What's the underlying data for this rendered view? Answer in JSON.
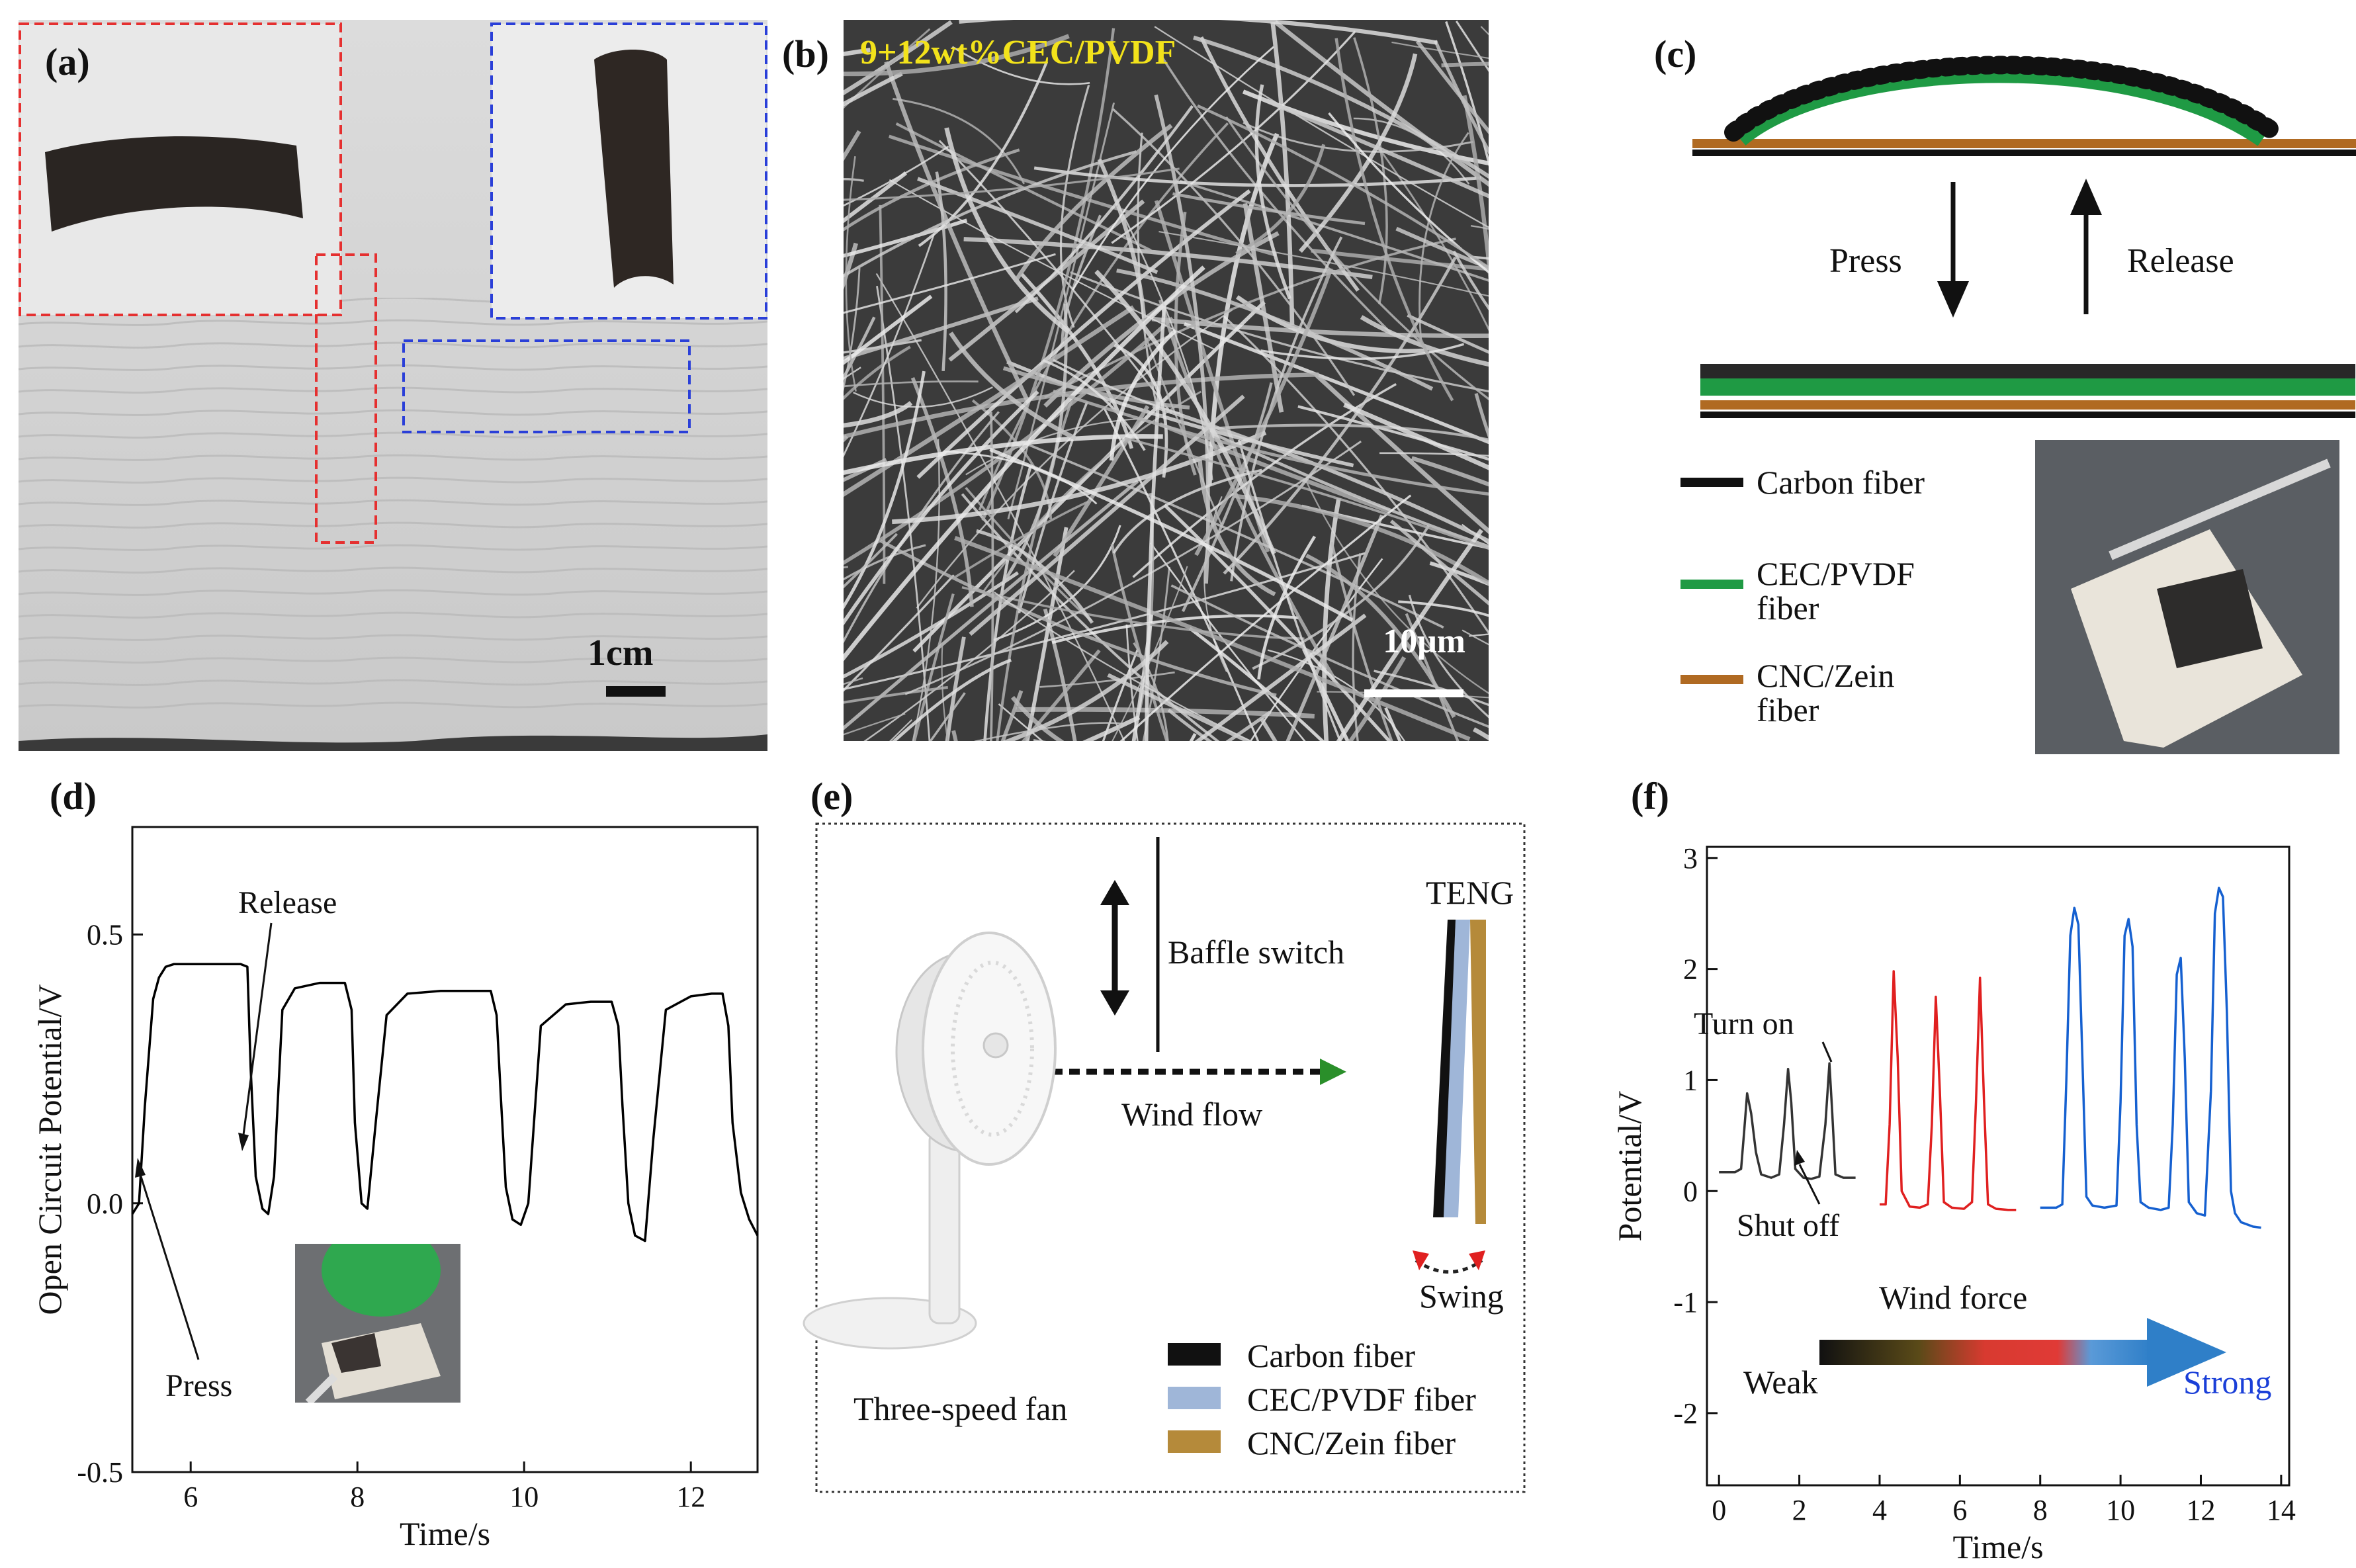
{
  "panels": {
    "a": {
      "label": "(a)",
      "scale_bar": "1cm"
    },
    "b": {
      "label": "(b)",
      "sample": "9+12wt%CEC/PVDF",
      "scale_bar": "10μm"
    },
    "c": {
      "label": "(c)",
      "press": "Press",
      "release": "Release",
      "legend": [
        {
          "label": "Carbon fiber",
          "color": "#000000"
        },
        {
          "label": "CEC/PVDF",
          "label2": "fiber",
          "color": "#1f9a44"
        },
        {
          "label": "CNC/Zein",
          "label2": "fiber",
          "color": "#b06a22"
        }
      ]
    },
    "d": {
      "label": "(d)",
      "ann_release": "Release",
      "ann_press": "Press"
    },
    "e": {
      "label": "(e)",
      "teng": "TENG",
      "baffle": "Baffle switch",
      "wind_flow": "Wind flow",
      "swing": "Swing",
      "fan": "Three-speed fan",
      "legend": [
        {
          "label": "Carbon fiber",
          "color": "#000000"
        },
        {
          "label": "CEC/PVDF fiber",
          "color": "#9fb6d8"
        },
        {
          "label": "CNC/Zein fiber",
          "color": "#b58a3a"
        }
      ]
    },
    "f": {
      "label": "(f)",
      "turn_on": "Turn on",
      "shut_off": "Shut off",
      "wind_force": "Wind force",
      "weak": "Weak",
      "strong": "Strong"
    }
  },
  "chart_data": [
    {
      "id": "d",
      "type": "line",
      "xlabel": "Time/s",
      "ylabel": "Open Circuit Potential/V",
      "xlim": [
        5.3,
        12.8
      ],
      "ylim": [
        -0.5,
        0.7
      ],
      "xticks": [
        6,
        8,
        10,
        12
      ],
      "yticks": [
        -0.5,
        0.0,
        0.5
      ],
      "ytick_labels": [
        "-0.5",
        "0.0",
        "0.5"
      ],
      "series": [
        {
          "color": "#000000",
          "x": [
            5.3,
            5.38,
            5.45,
            5.55,
            5.62,
            5.7,
            5.8,
            6.0,
            6.3,
            6.6,
            6.68,
            6.72,
            6.78,
            6.86,
            6.93,
            7.0,
            7.1,
            7.25,
            7.55,
            7.85,
            7.93,
            7.97,
            8.05,
            8.12,
            8.22,
            8.35,
            8.6,
            9.0,
            9.3,
            9.6,
            9.67,
            9.72,
            9.78,
            9.86,
            9.96,
            10.05,
            10.2,
            10.5,
            10.8,
            11.05,
            11.13,
            11.18,
            11.25,
            11.33,
            11.45,
            11.55,
            11.7,
            12.0,
            12.25,
            12.38,
            12.45,
            12.5,
            12.6,
            12.7,
            12.8
          ],
          "y": [
            -0.02,
            0.0,
            0.18,
            0.38,
            0.42,
            0.44,
            0.445,
            0.445,
            0.445,
            0.445,
            0.44,
            0.25,
            0.05,
            -0.01,
            -0.02,
            0.05,
            0.36,
            0.4,
            0.41,
            0.41,
            0.36,
            0.15,
            0.0,
            -0.01,
            0.15,
            0.35,
            0.39,
            0.395,
            0.395,
            0.395,
            0.35,
            0.2,
            0.03,
            -0.03,
            -0.04,
            0.0,
            0.33,
            0.37,
            0.375,
            0.375,
            0.33,
            0.18,
            0.0,
            -0.06,
            -0.07,
            0.12,
            0.36,
            0.385,
            0.39,
            0.39,
            0.33,
            0.15,
            0.02,
            -0.03,
            -0.06
          ]
        }
      ]
    },
    {
      "id": "f",
      "type": "line",
      "xlabel": "Time/s",
      "ylabel": "Potential/V",
      "xlim": [
        -0.3,
        14.2
      ],
      "ylim": [
        -2.65,
        3.1
      ],
      "xticks": [
        0,
        2,
        4,
        6,
        8,
        10,
        12,
        14
      ],
      "yticks": [
        -2,
        -1,
        0,
        1,
        2,
        3
      ],
      "series": [
        {
          "name": "",
          "color": "#333333",
          "x": [
            0.0,
            0.4,
            0.55,
            0.63,
            0.7,
            0.8,
            0.92,
            1.05,
            1.3,
            1.5,
            1.62,
            1.72,
            1.8,
            1.9,
            2.1,
            2.3,
            2.5,
            2.65,
            2.75,
            2.82,
            2.9,
            3.1,
            3.4
          ],
          "y": [
            0.17,
            0.17,
            0.2,
            0.55,
            0.88,
            0.7,
            0.35,
            0.15,
            0.12,
            0.15,
            0.6,
            1.1,
            0.8,
            0.2,
            0.12,
            0.11,
            0.13,
            0.6,
            1.15,
            0.7,
            0.15,
            0.12,
            0.12
          ]
        },
        {
          "name": "",
          "color": "#e02020",
          "x": [
            4.0,
            4.15,
            4.25,
            4.35,
            4.45,
            4.55,
            4.75,
            5.0,
            5.2,
            5.3,
            5.4,
            5.5,
            5.6,
            5.8,
            6.1,
            6.3,
            6.4,
            6.5,
            6.6,
            6.7,
            6.9,
            7.2,
            7.4
          ],
          "y": [
            -0.12,
            -0.12,
            0.6,
            1.98,
            1.2,
            0.0,
            -0.14,
            -0.15,
            -0.12,
            0.6,
            1.75,
            0.9,
            -0.1,
            -0.15,
            -0.16,
            -0.1,
            0.8,
            1.92,
            0.8,
            -0.12,
            -0.16,
            -0.17,
            -0.17
          ]
        },
        {
          "name": "",
          "color": "#1560d0",
          "x": [
            8.0,
            8.4,
            8.55,
            8.65,
            8.75,
            8.85,
            8.95,
            9.05,
            9.15,
            9.3,
            9.6,
            9.9,
            10.0,
            10.1,
            10.2,
            10.3,
            10.4,
            10.5,
            10.7,
            11.0,
            11.2,
            11.3,
            11.4,
            11.5,
            11.6,
            11.7,
            11.9,
            12.1,
            12.25,
            12.35,
            12.45,
            12.55,
            12.65,
            12.75,
            12.85,
            13.0,
            13.3,
            13.5
          ],
          "y": [
            -0.15,
            -0.15,
            -0.12,
            1.0,
            2.3,
            2.55,
            2.4,
            1.2,
            -0.05,
            -0.13,
            -0.15,
            -0.13,
            0.8,
            2.3,
            2.45,
            2.2,
            0.6,
            -0.1,
            -0.15,
            -0.17,
            -0.15,
            0.6,
            1.95,
            2.1,
            1.2,
            -0.1,
            -0.2,
            -0.22,
            0.9,
            2.5,
            2.73,
            2.65,
            1.6,
            0.0,
            -0.2,
            -0.28,
            -0.32,
            -0.33
          ]
        }
      ]
    }
  ]
}
